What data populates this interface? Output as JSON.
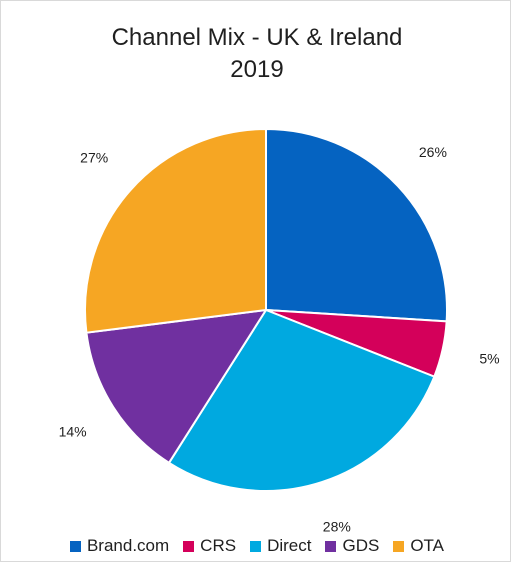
{
  "chart_data": {
    "type": "pie",
    "title_lines": [
      "Channel Mix - UK & Ireland",
      "2019"
    ],
    "categories": [
      "Brand.com",
      "CRS",
      "Direct",
      "GDS",
      "OTA"
    ],
    "values": [
      26,
      5,
      28,
      14,
      27
    ],
    "labels": [
      "26%",
      "5%",
      "28%",
      "14%",
      "27%"
    ],
    "colors": [
      "#0563C1",
      "#D4005A",
      "#00A9E0",
      "#7030A0",
      "#F6A623"
    ],
    "start": "12 o'clock",
    "direction": "clockwise",
    "legend_position": "bottom"
  }
}
